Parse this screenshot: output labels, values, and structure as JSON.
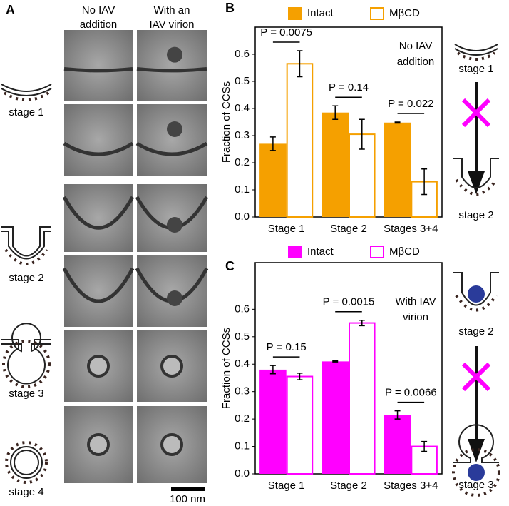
{
  "panel_a": {
    "label": "A",
    "columns": [
      [
        "No IAV",
        "addition"
      ],
      [
        "With an",
        "IAV virion"
      ]
    ],
    "stages": [
      "stage 1",
      "stage 2",
      "stage 3",
      "stage 4"
    ],
    "scale_bar": "100 nm"
  },
  "chart_data": [
    {
      "type": "bar",
      "panel_label": "B",
      "ylabel": "Fraction of CCSs",
      "categories": [
        "Stage 1",
        "Stage 2",
        "Stages 3+4"
      ],
      "series": [
        {
          "name": "Intact",
          "color": "#f5a000",
          "hollow": false,
          "values": [
            0.27,
            0.385,
            0.348
          ],
          "errors": [
            0.025,
            0.025,
            0.002
          ]
        },
        {
          "name": "MβCD",
          "color": "#f5a000",
          "hollow": true,
          "values": [
            0.565,
            0.305,
            0.13
          ],
          "errors": [
            0.048,
            0.055,
            0.047
          ]
        }
      ],
      "ylim": [
        0,
        0.7
      ],
      "yticks": [
        {
          "value": 0,
          "label": "0.0"
        },
        0.1,
        0.2,
        0.3,
        0.4,
        0.5,
        0.6
      ],
      "annotations": [
        "P = 0.0075",
        "P = 0.14",
        "P = 0.022"
      ],
      "note": [
        "No IAV",
        "addition"
      ],
      "diagram_labels": [
        "stage 1",
        "stage 2"
      ]
    },
    {
      "type": "bar",
      "panel_label": "C",
      "ylabel": "Fraction of CCSs",
      "categories": [
        "Stage 1",
        "Stage 2",
        "Stages 3+4"
      ],
      "series": [
        {
          "name": "Intact",
          "color": "#ff00ff",
          "hollow": false,
          "values": [
            0.38,
            0.41,
            0.215
          ],
          "errors": [
            0.015,
            0.002,
            0.015
          ]
        },
        {
          "name": "MβCD",
          "color": "#ff00ff",
          "hollow": true,
          "values": [
            0.355,
            0.55,
            0.1
          ],
          "errors": [
            0.012,
            0.01,
            0.018
          ]
        }
      ],
      "ylim": [
        0,
        0.77
      ],
      "yticks": [
        {
          "value": 0,
          "label": "0.0"
        },
        0.1,
        0.2,
        0.3,
        0.4,
        0.5,
        0.6
      ],
      "annotations": [
        "P = 0.15",
        "P = 0.0015",
        "P = 0.0066"
      ],
      "note": [
        "With IAV",
        "virion"
      ],
      "diagram_labels": [
        "stage 2",
        "stage 3"
      ]
    }
  ]
}
